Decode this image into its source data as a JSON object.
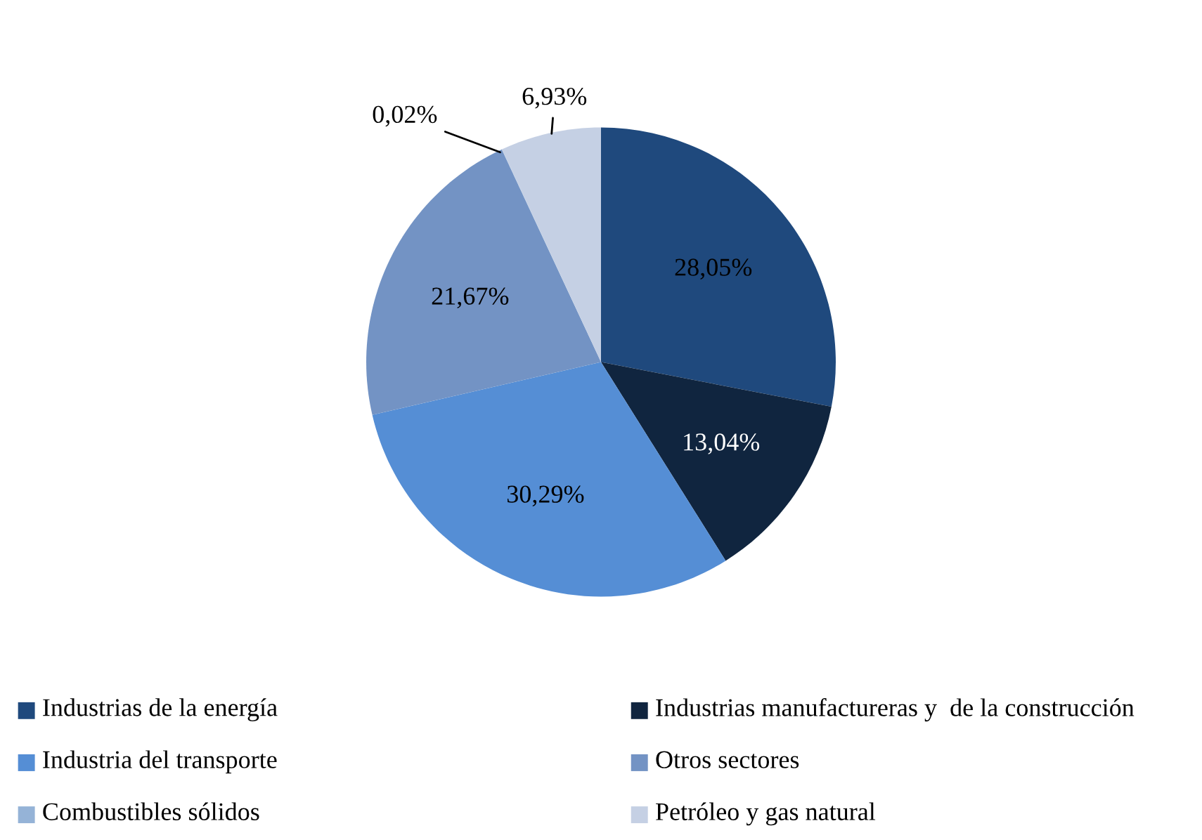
{
  "chart_data": {
    "type": "pie",
    "categories": [
      "Industrias de la energía",
      "Industrias manufactureras y  de la construcción",
      "Industria del transporte",
      "Otros sectores",
      "Combustibles sólidos",
      "Petróleo y gas natural"
    ],
    "values": [
      28.05,
      13.04,
      30.29,
      21.67,
      0.02,
      6.93
    ],
    "value_labels": [
      "28,05%",
      "13,04%",
      "30,29%",
      "21,67%",
      "0,02%",
      "6,93%"
    ],
    "colors": [
      "#1f497d",
      "#10253f",
      "#558ed5",
      "#7393c4",
      "#95b3d7",
      "#c5d0e4"
    ],
    "legend": "bottom"
  }
}
